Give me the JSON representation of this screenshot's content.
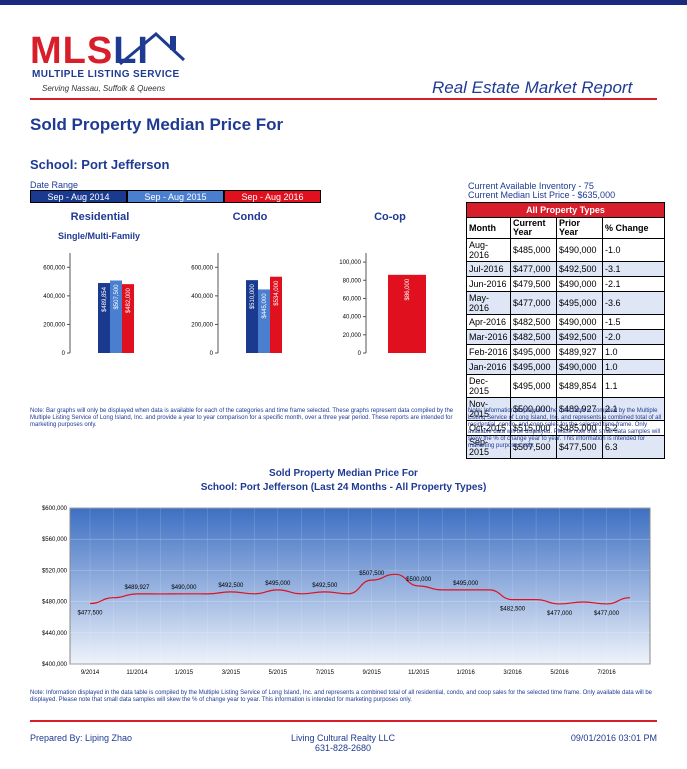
{
  "header": {
    "logo_main": "MLS",
    "logo_accent": "LI",
    "logo_subtitle": "MULTIPLE LISTING SERVICE",
    "logo_tagline": "Serving Nassau, Suffolk & Queens",
    "report_title": "Real Estate Market Report"
  },
  "title": "Sold Property Median Price For",
  "school": "School: Port Jefferson",
  "date_range": {
    "label": "Date Range",
    "ranges": [
      {
        "label": "Sep - Aug 2014",
        "color": "#1a3a8f"
      },
      {
        "label": "Sep - Aug 2015",
        "color": "#4a7fd0"
      },
      {
        "label": "Sep - Aug 2016",
        "color": "#e0101e"
      }
    ]
  },
  "bar_charts": {
    "chart_data": [
      {
        "type": "bar",
        "title": "Residential",
        "subtitle": "Single/Multi-Family",
        "ylim": [
          0,
          700000
        ],
        "yticks": [
          "600,000",
          "400,000",
          "200,000",
          "0"
        ],
        "ytick_values": [
          600000,
          400000,
          200000,
          0
        ],
        "values": [
          489854,
          507500,
          482000
        ],
        "labels": [
          "$489,854",
          "$507,500",
          "$482,000"
        ]
      },
      {
        "type": "bar",
        "title": "Condo",
        "subtitle": "",
        "ylim": [
          0,
          700000
        ],
        "yticks": [
          "600,000",
          "400,000",
          "200,000",
          "0"
        ],
        "ytick_values": [
          600000,
          400000,
          200000,
          0
        ],
        "values": [
          510000,
          445000,
          534000
        ],
        "labels": [
          "$510,000",
          "$445,000",
          "$534,000"
        ]
      },
      {
        "type": "bar",
        "title": "Co-op",
        "subtitle": "",
        "ylim": [
          0,
          110000
        ],
        "yticks": [
          "100,000",
          "80,000",
          "60,000",
          "40,000",
          "20,000",
          "0"
        ],
        "ytick_values": [
          100000,
          80000,
          60000,
          40000,
          20000,
          0
        ],
        "values": [
          86000
        ],
        "labels": [
          "$86,000"
        ]
      }
    ]
  },
  "inventory": {
    "available": "Current Available Inventory - 75",
    "median_list": "Current Median List Price - $635,000"
  },
  "table": {
    "header": "All Property Types",
    "columns": [
      "Month",
      "Current Year",
      "Prior Year",
      "% Change"
    ],
    "rows": [
      [
        "Aug-2016",
        "$485,000",
        "$490,000",
        "-1.0"
      ],
      [
        "Jul-2016",
        "$477,000",
        "$492,500",
        "-3.1"
      ],
      [
        "Jun-2016",
        "$479,500",
        "$490,000",
        "-2.1"
      ],
      [
        "May-2016",
        "$477,000",
        "$495,000",
        "-3.6"
      ],
      [
        "Apr-2016",
        "$482,500",
        "$490,000",
        "-1.5"
      ],
      [
        "Mar-2016",
        "$482,500",
        "$492,500",
        "-2.0"
      ],
      [
        "Feb-2016",
        "$495,000",
        "$489,927",
        "1.0"
      ],
      [
        "Jan-2016",
        "$495,000",
        "$490,000",
        "1.0"
      ],
      [
        "Dec-2015",
        "$495,000",
        "$489,854",
        "1.1"
      ],
      [
        "Nov-2015",
        "$500,000",
        "$489,927",
        "2.1"
      ],
      [
        "Oct-2015",
        "$515,000",
        "$485,000",
        "6.2"
      ],
      [
        "Sep-2015",
        "$507,500",
        "$477,500",
        "6.3"
      ]
    ]
  },
  "notes": {
    "bar_note": "Note: Bar graphs will only be displayed when data is available for each of the categories and time frame selected. These graphs represent data compiled by the Multiple Listing Service of Long Island, Inc. and provide a year to year comparison for a specific month, over a three year period. These reports are intended for marketing purposes only.",
    "table_note": "Note: Information displayed in the data table is compiled by the Multiple Listing Service of Long Island, Inc. and represents a combined total of all residential, condo, and coop sales for the selected time frame. Only available data will be displayed. Please note that small data samples will skew the % of change year to year. This information is intended for marketing purposes only.",
    "line_note": "Note: Information displayed in the data table is compiled by the Multiple Listing Service of Long Island, Inc. and represents a combined total of all residential, condo, and coop sales for the selected time frame. Only available data will be displayed. Please note that small data samples will skew the % of change year to year. This information is intended for marketing purposes only."
  },
  "line_chart": {
    "title_line1": "Sold Property Median Price For",
    "title_line2": "School: Port Jefferson (Last 24 Months - All Property Types)",
    "chart_data": {
      "type": "area",
      "ylim": [
        400000,
        600000
      ],
      "yticks": [
        "$600,000",
        "$560,000",
        "$520,000",
        "$480,000",
        "$440,000",
        "$400,000"
      ],
      "ytick_values": [
        600000,
        560000,
        520000,
        480000,
        440000,
        400000
      ],
      "xticks": [
        "9/2014",
        "11/2014",
        "1/2015",
        "3/2015",
        "5/2015",
        "7/2015",
        "9/2015",
        "11/2015",
        "1/2016",
        "3/2016",
        "5/2016",
        "7/2016"
      ],
      "x": [
        "9/2014",
        "10/2014",
        "11/2014",
        "12/2014",
        "1/2015",
        "2/2015",
        "3/2015",
        "4/2015",
        "5/2015",
        "6/2015",
        "7/2015",
        "8/2015",
        "9/2015",
        "10/2015",
        "11/2015",
        "12/2015",
        "1/2016",
        "2/2016",
        "3/2016",
        "4/2016",
        "5/2016",
        "6/2016",
        "7/2016",
        "8/2016"
      ],
      "values": [
        477500,
        485000,
        489927,
        489854,
        490000,
        489927,
        492500,
        490000,
        495000,
        490000,
        492500,
        490000,
        507500,
        515000,
        500000,
        495000,
        495000,
        495000,
        482500,
        482500,
        477000,
        479500,
        477000,
        485000
      ],
      "data_labels": [
        {
          "index": 0,
          "label": "$477,500"
        },
        {
          "index": 2,
          "label": "$489,927"
        },
        {
          "index": 4,
          "label": "$490,000"
        },
        {
          "index": 6,
          "label": "$492,500"
        },
        {
          "index": 8,
          "label": "$495,000"
        },
        {
          "index": 10,
          "label": "$492,500"
        },
        {
          "index": 12,
          "label": "$507,500"
        },
        {
          "index": 14,
          "label": "$500,000"
        },
        {
          "index": 16,
          "label": "$495,000"
        },
        {
          "index": 18,
          "label": "$482,500"
        },
        {
          "index": 20,
          "label": "$477,000"
        },
        {
          "index": 22,
          "label": "$477,000"
        }
      ]
    }
  },
  "footer": {
    "prepared_by": "Prepared By: Liping Zhao",
    "company": "Living Cultural Realty LLC",
    "phone": "631-828-2680",
    "datetime": "09/01/2016 03:01 PM"
  }
}
